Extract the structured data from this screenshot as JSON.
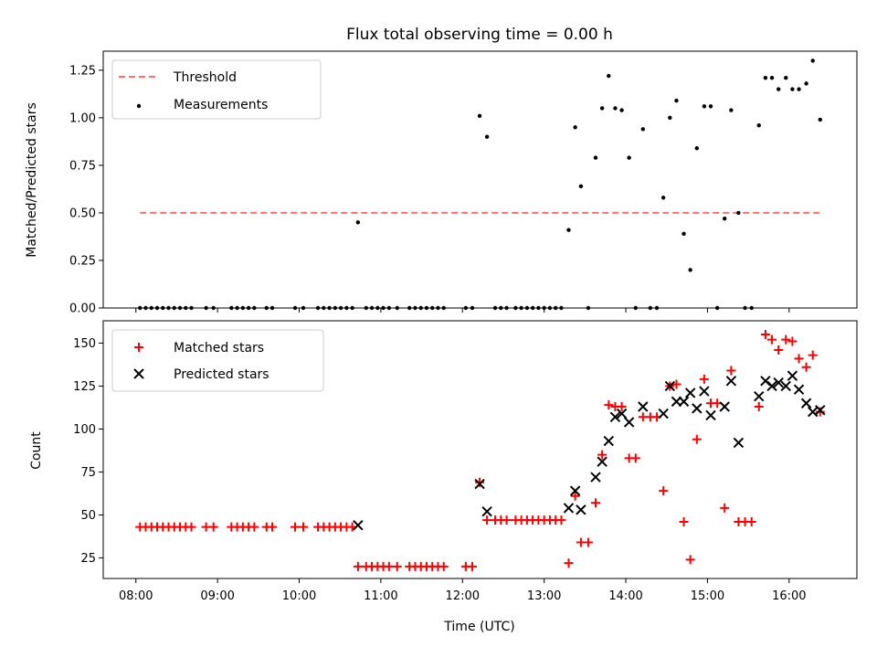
{
  "chart_data": [
    {
      "type": "scatter",
      "title": "Flux total observing time = 0.00 h",
      "xlabel": "",
      "ylabel": "Matched/Predicted stars",
      "ylim": [
        0,
        1.35
      ],
      "xlim": [
        7.6,
        16.83
      ],
      "yticks": [
        0.0,
        0.25,
        0.5,
        0.75,
        1.0,
        1.25
      ],
      "ytick_labels": [
        "0.00",
        "0.25",
        "0.50",
        "0.75",
        "1.00",
        "1.25"
      ],
      "xticks": [
        8,
        9,
        10,
        11,
        12,
        13,
        14,
        15,
        16
      ],
      "legend_placement": "top-left",
      "threshold": {
        "name": "Threshold",
        "x": [
          8.05,
          16.42
        ],
        "y": 0.5,
        "color": "#ff6f6f"
      },
      "series": [
        {
          "name": "Measurements",
          "color": "#000000",
          "points": [
            [
              8.05,
              0
            ],
            [
              8.12,
              0
            ],
            [
              8.19,
              0
            ],
            [
              8.26,
              0
            ],
            [
              8.33,
              0
            ],
            [
              8.4,
              0
            ],
            [
              8.47,
              0
            ],
            [
              8.54,
              0
            ],
            [
              8.61,
              0
            ],
            [
              8.68,
              0
            ],
            [
              8.86,
              0
            ],
            [
              8.95,
              0
            ],
            [
              9.17,
              0
            ],
            [
              9.24,
              0
            ],
            [
              9.31,
              0
            ],
            [
              9.38,
              0
            ],
            [
              9.45,
              0
            ],
            [
              9.6,
              0
            ],
            [
              9.67,
              0
            ],
            [
              9.95,
              0
            ],
            [
              10.05,
              0
            ],
            [
              10.23,
              0
            ],
            [
              10.3,
              0
            ],
            [
              10.37,
              0
            ],
            [
              10.44,
              0
            ],
            [
              10.51,
              0
            ],
            [
              10.58,
              0
            ],
            [
              10.65,
              0
            ],
            [
              10.72,
              0.45
            ],
            [
              10.82,
              0
            ],
            [
              10.89,
              0
            ],
            [
              10.96,
              0
            ],
            [
              11.03,
              0
            ],
            [
              11.1,
              0
            ],
            [
              11.2,
              0
            ],
            [
              11.35,
              0
            ],
            [
              11.42,
              0
            ],
            [
              11.49,
              0
            ],
            [
              11.56,
              0
            ],
            [
              11.63,
              0
            ],
            [
              11.7,
              0
            ],
            [
              11.77,
              0
            ],
            [
              12.04,
              0
            ],
            [
              12.12,
              0
            ],
            [
              12.21,
              1.01
            ],
            [
              12.3,
              0.9
            ],
            [
              12.4,
              0
            ],
            [
              12.47,
              0
            ],
            [
              12.54,
              0
            ],
            [
              12.65,
              0
            ],
            [
              12.72,
              0
            ],
            [
              12.79,
              0
            ],
            [
              12.86,
              0
            ],
            [
              12.93,
              0
            ],
            [
              13.0,
              0
            ],
            [
              13.07,
              0
            ],
            [
              13.14,
              0
            ],
            [
              13.21,
              0
            ],
            [
              13.3,
              0.41
            ],
            [
              13.38,
              0.95
            ],
            [
              13.45,
              0.64
            ],
            [
              13.54,
              0
            ],
            [
              13.63,
              0.79
            ],
            [
              13.71,
              1.05
            ],
            [
              13.79,
              1.22
            ],
            [
              13.87,
              1.05
            ],
            [
              13.95,
              1.04
            ],
            [
              14.04,
              0.79
            ],
            [
              14.12,
              0
            ],
            [
              14.21,
              0.94
            ],
            [
              14.3,
              0
            ],
            [
              14.38,
              0
            ],
            [
              14.46,
              0.58
            ],
            [
              14.54,
              1.0
            ],
            [
              14.62,
              1.09
            ],
            [
              14.71,
              0.39
            ],
            [
              14.79,
              0.2
            ],
            [
              14.87,
              0.84
            ],
            [
              14.96,
              1.06
            ],
            [
              15.04,
              1.06
            ],
            [
              15.12,
              0
            ],
            [
              15.21,
              0.47
            ],
            [
              15.29,
              1.04
            ],
            [
              15.38,
              0.5
            ],
            [
              15.46,
              0
            ],
            [
              15.54,
              0
            ],
            [
              15.63,
              0.96
            ],
            [
              15.71,
              1.21
            ],
            [
              15.79,
              1.21
            ],
            [
              15.87,
              1.15
            ],
            [
              15.96,
              1.21
            ],
            [
              16.04,
              1.15
            ],
            [
              16.12,
              1.15
            ],
            [
              16.21,
              1.18
            ],
            [
              16.29,
              1.3
            ],
            [
              16.38,
              0.99
            ]
          ]
        }
      ]
    },
    {
      "type": "scatter",
      "title": "",
      "xlabel": "Time (UTC)",
      "ylabel": "Count",
      "ylim": [
        13,
        163
      ],
      "xlim": [
        7.6,
        16.83
      ],
      "yticks": [
        25,
        50,
        75,
        100,
        125,
        150
      ],
      "ytick_labels": [
        "25",
        "50",
        "75",
        "100",
        "125",
        "150"
      ],
      "xticks": [
        8,
        9,
        10,
        11,
        12,
        13,
        14,
        15,
        16
      ],
      "xtick_labels": [
        "08:00",
        "09:00",
        "10:00",
        "11:00",
        "12:00",
        "13:00",
        "14:00",
        "15:00",
        "16:00"
      ],
      "legend_placement": "top-left",
      "series": [
        {
          "name": "Matched stars",
          "marker": "plus",
          "color": "#ff0000",
          "points": [
            [
              8.05,
              43
            ],
            [
              8.12,
              43
            ],
            [
              8.19,
              43
            ],
            [
              8.26,
              43
            ],
            [
              8.33,
              43
            ],
            [
              8.4,
              43
            ],
            [
              8.47,
              43
            ],
            [
              8.54,
              43
            ],
            [
              8.61,
              43
            ],
            [
              8.68,
              43
            ],
            [
              8.86,
              43
            ],
            [
              8.95,
              43
            ],
            [
              9.17,
              43
            ],
            [
              9.24,
              43
            ],
            [
              9.31,
              43
            ],
            [
              9.38,
              43
            ],
            [
              9.45,
              43
            ],
            [
              9.6,
              43
            ],
            [
              9.67,
              43
            ],
            [
              9.95,
              43
            ],
            [
              10.05,
              43
            ],
            [
              10.23,
              43
            ],
            [
              10.3,
              43
            ],
            [
              10.37,
              43
            ],
            [
              10.44,
              43
            ],
            [
              10.51,
              43
            ],
            [
              10.58,
              43
            ],
            [
              10.65,
              43
            ],
            [
              10.72,
              20
            ],
            [
              10.82,
              20
            ],
            [
              10.89,
              20
            ],
            [
              10.96,
              20
            ],
            [
              11.03,
              20
            ],
            [
              11.1,
              20
            ],
            [
              11.2,
              20
            ],
            [
              11.35,
              20
            ],
            [
              11.42,
              20
            ],
            [
              11.49,
              20
            ],
            [
              11.56,
              20
            ],
            [
              11.63,
              20
            ],
            [
              11.7,
              20
            ],
            [
              11.77,
              20
            ],
            [
              12.04,
              20
            ],
            [
              12.12,
              20
            ],
            [
              12.21,
              69
            ],
            [
              12.3,
              47
            ],
            [
              12.4,
              47
            ],
            [
              12.47,
              47
            ],
            [
              12.54,
              47
            ],
            [
              12.65,
              47
            ],
            [
              12.72,
              47
            ],
            [
              12.79,
              47
            ],
            [
              12.86,
              47
            ],
            [
              12.93,
              47
            ],
            [
              13.0,
              47
            ],
            [
              13.07,
              47
            ],
            [
              13.14,
              47
            ],
            [
              13.21,
              47
            ],
            [
              13.3,
              22
            ],
            [
              13.38,
              61
            ],
            [
              13.45,
              34
            ],
            [
              13.54,
              34
            ],
            [
              13.63,
              57
            ],
            [
              13.71,
              85
            ],
            [
              13.79,
              114
            ],
            [
              13.87,
              113
            ],
            [
              13.95,
              113
            ],
            [
              14.04,
              83
            ],
            [
              14.12,
              83
            ],
            [
              14.21,
              107
            ],
            [
              14.3,
              107
            ],
            [
              14.38,
              107
            ],
            [
              14.46,
              64
            ],
            [
              14.54,
              125
            ],
            [
              14.62,
              126
            ],
            [
              14.71,
              46
            ],
            [
              14.79,
              24
            ],
            [
              14.87,
              94
            ],
            [
              14.96,
              129
            ],
            [
              15.04,
              115
            ],
            [
              15.12,
              115
            ],
            [
              15.21,
              54
            ],
            [
              15.29,
              134
            ],
            [
              15.38,
              46
            ],
            [
              15.46,
              46
            ],
            [
              15.54,
              46
            ],
            [
              15.63,
              113
            ],
            [
              15.71,
              155
            ],
            [
              15.79,
              152
            ],
            [
              15.87,
              146
            ],
            [
              15.96,
              152
            ],
            [
              16.04,
              151
            ],
            [
              16.12,
              141
            ],
            [
              16.21,
              136
            ],
            [
              16.29,
              143
            ],
            [
              16.38,
              110
            ]
          ]
        },
        {
          "name": "Predicted stars",
          "marker": "x",
          "color": "#000000",
          "points": [
            [
              10.72,
              44
            ],
            [
              12.21,
              68
            ],
            [
              12.3,
              52
            ],
            [
              13.3,
              54
            ],
            [
              13.38,
              64
            ],
            [
              13.45,
              53
            ],
            [
              13.63,
              72
            ],
            [
              13.71,
              81
            ],
            [
              13.79,
              93
            ],
            [
              13.87,
              107
            ],
            [
              13.95,
              109
            ],
            [
              14.04,
              104
            ],
            [
              14.21,
              113
            ],
            [
              14.46,
              109
            ],
            [
              14.54,
              125
            ],
            [
              14.62,
              116
            ],
            [
              14.71,
              116
            ],
            [
              14.79,
              121
            ],
            [
              14.87,
              112
            ],
            [
              14.96,
              122
            ],
            [
              15.04,
              108
            ],
            [
              15.21,
              113
            ],
            [
              15.29,
              128
            ],
            [
              15.38,
              92
            ],
            [
              15.63,
              119
            ],
            [
              15.71,
              128
            ],
            [
              15.79,
              125
            ],
            [
              15.87,
              127
            ],
            [
              15.96,
              125
            ],
            [
              16.04,
              131
            ],
            [
              16.12,
              123
            ],
            [
              16.21,
              115
            ],
            [
              16.29,
              110
            ],
            [
              16.38,
              111
            ]
          ]
        }
      ]
    }
  ]
}
